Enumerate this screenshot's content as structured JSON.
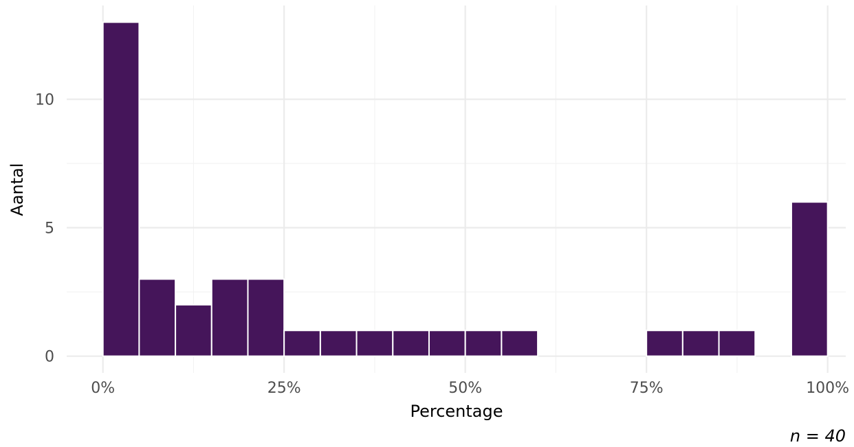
{
  "chart_data": {
    "type": "bar",
    "subtype": "histogram",
    "bin_width": 5,
    "bins": [
      {
        "x0": 0,
        "x1": 5,
        "count": 13
      },
      {
        "x0": 5,
        "x1": 10,
        "count": 3
      },
      {
        "x0": 10,
        "x1": 15,
        "count": 2
      },
      {
        "x0": 15,
        "x1": 20,
        "count": 3
      },
      {
        "x0": 20,
        "x1": 25,
        "count": 3
      },
      {
        "x0": 25,
        "x1": 30,
        "count": 1
      },
      {
        "x0": 30,
        "x1": 35,
        "count": 1
      },
      {
        "x0": 35,
        "x1": 40,
        "count": 1
      },
      {
        "x0": 40,
        "x1": 45,
        "count": 1
      },
      {
        "x0": 45,
        "x1": 50,
        "count": 1
      },
      {
        "x0": 50,
        "x1": 55,
        "count": 1
      },
      {
        "x0": 55,
        "x1": 60,
        "count": 1
      },
      {
        "x0": 60,
        "x1": 65,
        "count": 0
      },
      {
        "x0": 65,
        "x1": 70,
        "count": 0
      },
      {
        "x0": 70,
        "x1": 75,
        "count": 0
      },
      {
        "x0": 75,
        "x1": 80,
        "count": 1
      },
      {
        "x0": 80,
        "x1": 85,
        "count": 1
      },
      {
        "x0": 85,
        "x1": 90,
        "count": 1
      },
      {
        "x0": 90,
        "x1": 95,
        "count": 0
      },
      {
        "x0": 95,
        "x1": 100,
        "count": 6
      }
    ],
    "xlabel": "Percentage",
    "ylabel": "Aantal",
    "caption": "n = 40",
    "xlim": [
      -5,
      102.5
    ],
    "ylim": [
      -0.65,
      13.65
    ],
    "x_ticks": [
      0,
      25,
      50,
      75,
      100
    ],
    "x_tick_labels": [
      "0%",
      "25%",
      "50%",
      "75%",
      "100%"
    ],
    "y_ticks": [
      0,
      5,
      10
    ],
    "y_tick_labels": [
      "0",
      "5",
      "10"
    ],
    "bar_color": "#45155a",
    "grid": true,
    "legend": "none"
  }
}
